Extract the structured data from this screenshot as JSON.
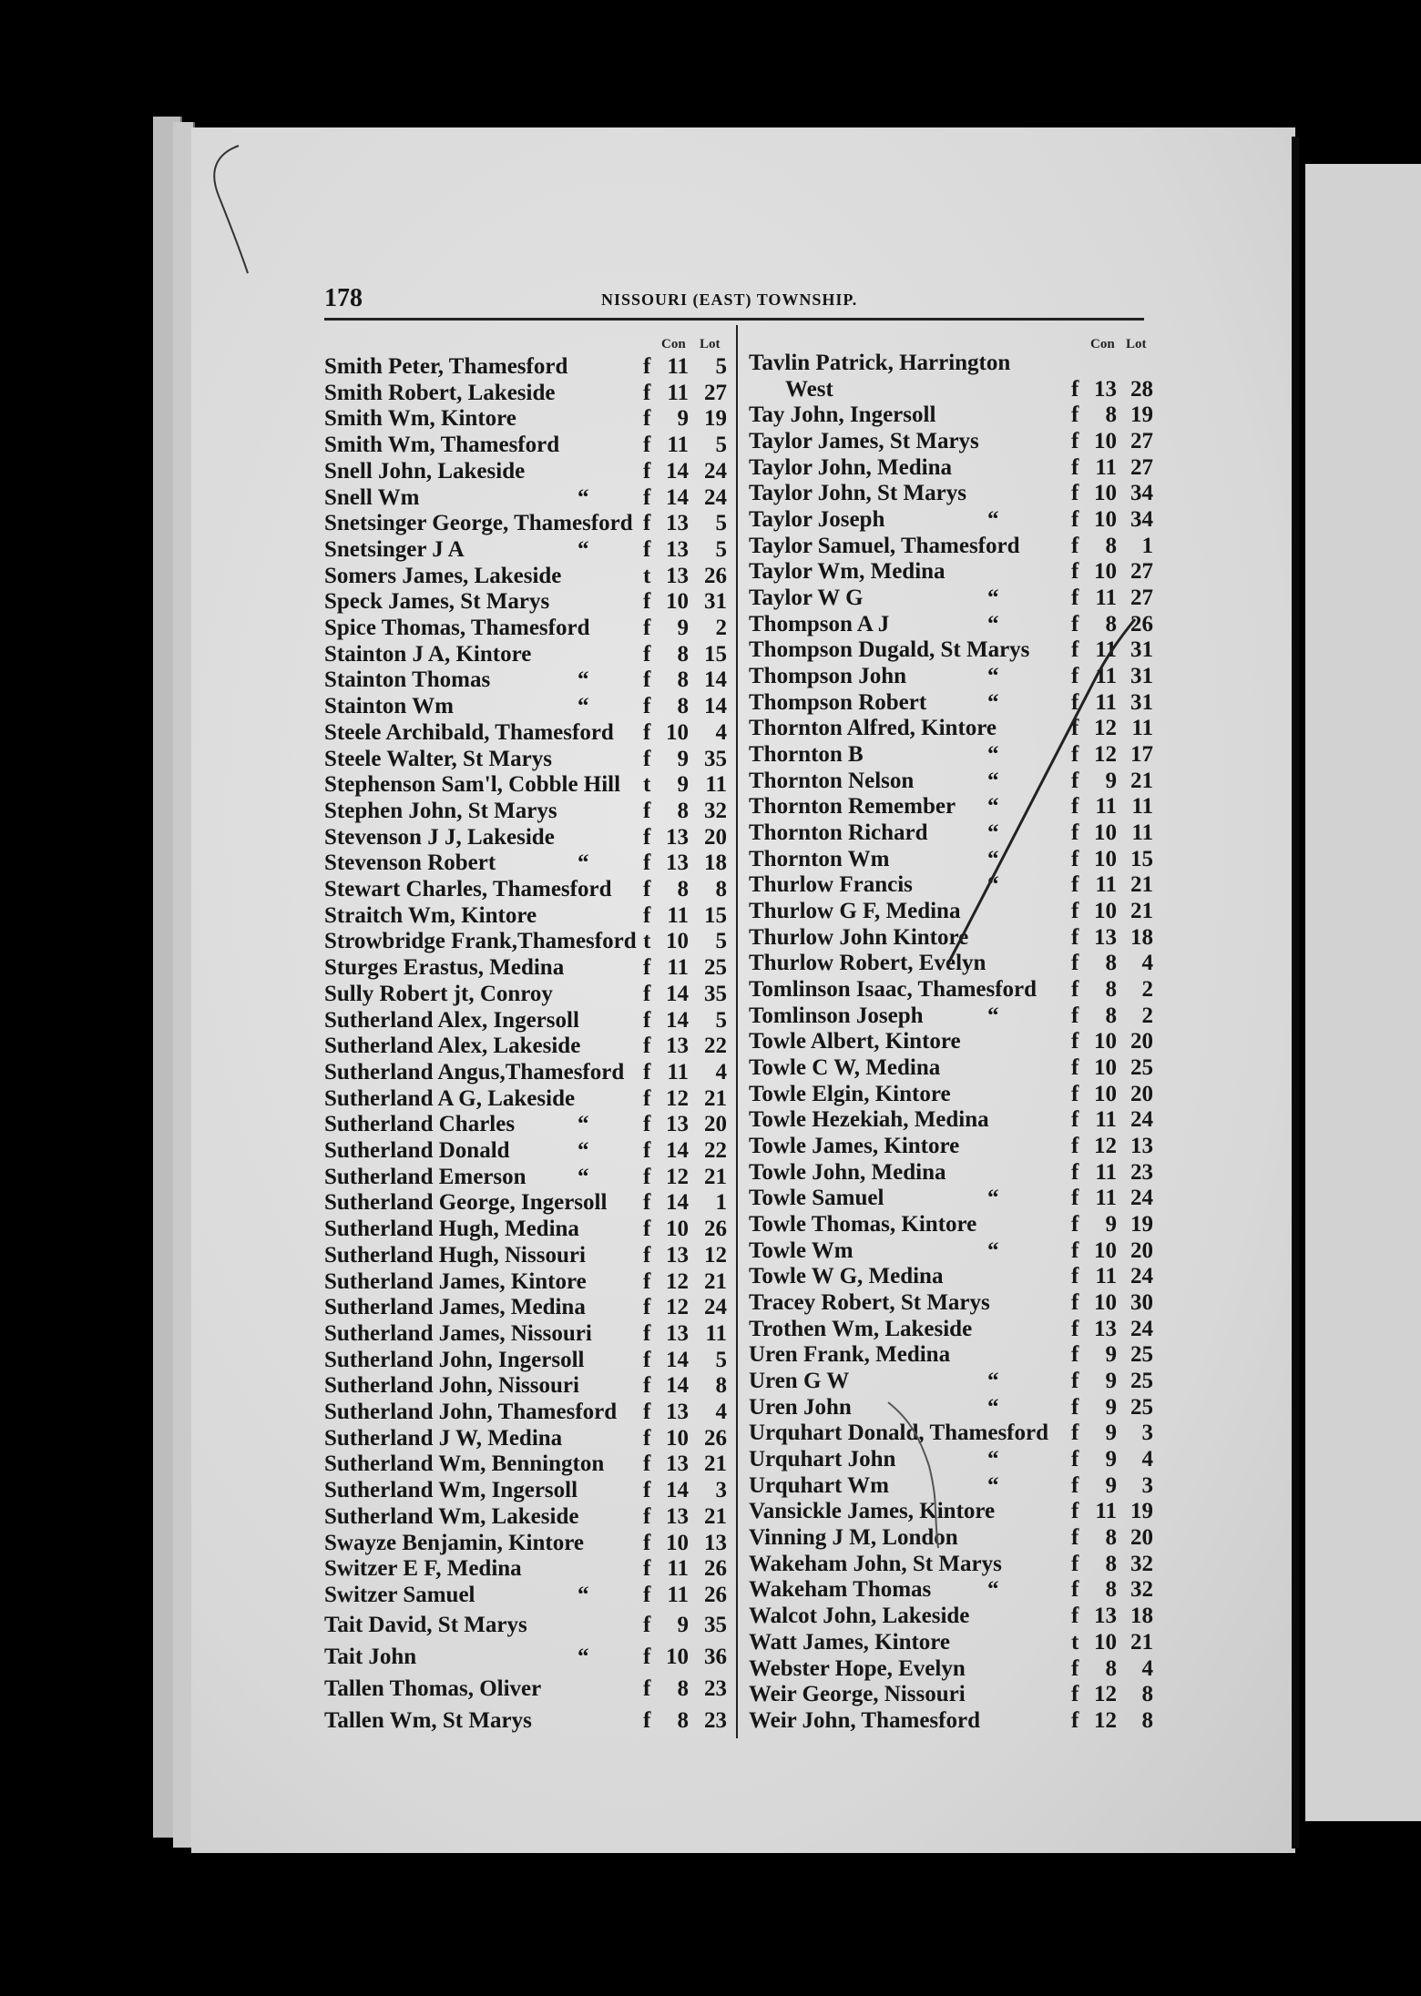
{
  "header": {
    "page_number": "178",
    "title": "NISSOURI (EAST) TOWNSHIP."
  },
  "columns_header": {
    "con": "Con",
    "lot": "Lot"
  },
  "left_entries": [
    {
      "name": "Smith Peter, Thamesford",
      "type": "f",
      "con": "11",
      "lot": "5"
    },
    {
      "name": "Smith Robert, Lakeside",
      "type": "f",
      "con": "11",
      "lot": "27"
    },
    {
      "name": "Smith Wm, Kintore",
      "type": "f",
      "con": "9",
      "lot": "19"
    },
    {
      "name": "Smith Wm, Thamesford",
      "type": "f",
      "con": "11",
      "lot": "5"
    },
    {
      "name": "Snell John, Lakeside",
      "type": "f",
      "con": "14",
      "lot": "24"
    },
    {
      "name": "Snell Wm",
      "ditto": "“",
      "type": "f",
      "con": "14",
      "lot": "24"
    },
    {
      "name": "Snetsinger George, Thamesford",
      "type": "f",
      "con": "13",
      "lot": "5"
    },
    {
      "name": "Snetsinger J A",
      "ditto": "“",
      "type": "f",
      "con": "13",
      "lot": "5"
    },
    {
      "name": "Somers James, Lakeside",
      "type": "t",
      "con": "13",
      "lot": "26"
    },
    {
      "name": "Speck James, St Marys",
      "type": "f",
      "con": "10",
      "lot": "31"
    },
    {
      "name": "Spice Thomas, Thamesford",
      "type": "f",
      "con": "9",
      "lot": "2"
    },
    {
      "name": "Stainton J A, Kintore",
      "type": "f",
      "con": "8",
      "lot": "15"
    },
    {
      "name": "Stainton Thomas",
      "ditto": "“",
      "type": "f",
      "con": "8",
      "lot": "14"
    },
    {
      "name": "Stainton Wm",
      "ditto": "“",
      "type": "f",
      "con": "8",
      "lot": "14"
    },
    {
      "name": "Steele Archibald, Thamesford",
      "type": "f",
      "con": "10",
      "lot": "4"
    },
    {
      "name": "Steele Walter, St Marys",
      "type": "f",
      "con": "9",
      "lot": "35"
    },
    {
      "name": "Stephenson Sam'l, Cobble Hill",
      "type": "t",
      "con": "9",
      "lot": "11"
    },
    {
      "name": "Stephen John, St Marys",
      "type": "f",
      "con": "8",
      "lot": "32"
    },
    {
      "name": "Stevenson J J, Lakeside",
      "type": "f",
      "con": "13",
      "lot": "20"
    },
    {
      "name": "Stevenson Robert",
      "ditto": "“",
      "type": "f",
      "con": "13",
      "lot": "18"
    },
    {
      "name": "Stewart Charles, Thamesford",
      "type": "f",
      "con": "8",
      "lot": "8"
    },
    {
      "name": "Straitch Wm, Kintore",
      "type": "f",
      "con": "11",
      "lot": "15"
    },
    {
      "name": "Strowbridge Frank,Thamesford",
      "type": "t",
      "con": "10",
      "lot": "5"
    },
    {
      "name": "Sturges Erastus, Medina",
      "type": "f",
      "con": "11",
      "lot": "25"
    },
    {
      "name": "Sully Robert jt, Conroy",
      "type": "f",
      "con": "14",
      "lot": "35"
    },
    {
      "name": "Sutherland Alex, Ingersoll",
      "type": "f",
      "con": "14",
      "lot": "5"
    },
    {
      "name": "Sutherland Alex, Lakeside",
      "type": "f",
      "con": "13",
      "lot": "22"
    },
    {
      "name": "Sutherland Angus,Thamesford",
      "type": "f",
      "con": "11",
      "lot": "4"
    },
    {
      "name": "Sutherland A G, Lakeside",
      "type": "f",
      "con": "12",
      "lot": "21"
    },
    {
      "name": "Sutherland Charles",
      "ditto": "“",
      "type": "f",
      "con": "13",
      "lot": "20"
    },
    {
      "name": "Sutherland Donald",
      "ditto": "“",
      "type": "f",
      "con": "14",
      "lot": "22"
    },
    {
      "name": "Sutherland Emerson",
      "ditto": "“",
      "type": "f",
      "con": "12",
      "lot": "21"
    },
    {
      "name": "Sutherland George, Ingersoll",
      "type": "f",
      "con": "14",
      "lot": "1"
    },
    {
      "name": "Sutherland Hugh, Medina",
      "type": "f",
      "con": "10",
      "lot": "26"
    },
    {
      "name": "Sutherland Hugh, Nissouri",
      "type": "f",
      "con": "13",
      "lot": "12"
    },
    {
      "name": "Sutherland James, Kintore",
      "type": "f",
      "con": "12",
      "lot": "21"
    },
    {
      "name": "Sutherland James, Medina",
      "type": "f",
      "con": "12",
      "lot": "24"
    },
    {
      "name": "Sutherland James, Nissouri",
      "type": "f",
      "con": "13",
      "lot": "11"
    },
    {
      "name": "Sutherland John, Ingersoll",
      "type": "f",
      "con": "14",
      "lot": "5"
    },
    {
      "name": "Sutherland John, Nissouri",
      "type": "f",
      "con": "14",
      "lot": "8"
    },
    {
      "name": "Sutherland John, Thamesford",
      "type": "f",
      "con": "13",
      "lot": "4"
    },
    {
      "name": "Sutherland J W, Medina",
      "type": "f",
      "con": "10",
      "lot": "26"
    },
    {
      "name": "Sutherland Wm, Bennington",
      "type": "f",
      "con": "13",
      "lot": "21"
    },
    {
      "name": "Sutherland Wm, Ingersoll",
      "type": "f",
      "con": "14",
      "lot": "3"
    },
    {
      "name": "Sutherland Wm, Lakeside",
      "type": "f",
      "con": "13",
      "lot": "21"
    },
    {
      "name": "Swayze Benjamin, Kintore",
      "type": "f",
      "con": "10",
      "lot": "13"
    },
    {
      "name": "Switzer E F, Medina",
      "type": "f",
      "con": "11",
      "lot": "26"
    },
    {
      "name": "Switzer Samuel",
      "ditto": "“",
      "type": "f",
      "con": "11",
      "lot": "26"
    },
    {
      "name": "Tait David, St Marys",
      "type": "f",
      "con": "9",
      "lot": "35"
    },
    {
      "name": "Tait John",
      "ditto": "“",
      "type": "f",
      "con": "10",
      "lot": "36"
    },
    {
      "name": "Tallen Thomas, Oliver",
      "type": "f",
      "con": "8",
      "lot": "23"
    },
    {
      "name": "Tallen Wm, St Marys",
      "type": "f",
      "con": "8",
      "lot": "23"
    }
  ],
  "right_entries": [
    {
      "name": "Tavlin Patrick, Harrington",
      "name_cont": "West",
      "type": "f",
      "con": "13",
      "lot": "28"
    },
    {
      "name": "Tay John, Ingersoll",
      "type": "f",
      "con": "8",
      "lot": "19"
    },
    {
      "name": "Taylor James, St Marys",
      "type": "f",
      "con": "10",
      "lot": "27"
    },
    {
      "name": "Taylor John, Medina",
      "type": "f",
      "con": "11",
      "lot": "27"
    },
    {
      "name": "Taylor John, St Marys",
      "type": "f",
      "con": "10",
      "lot": "34"
    },
    {
      "name": "Taylor Joseph",
      "ditto": "“",
      "type": "f",
      "con": "10",
      "lot": "34"
    },
    {
      "name": "Taylor Samuel, Thamesford",
      "type": "f",
      "con": "8",
      "lot": "1"
    },
    {
      "name": "Taylor Wm, Medina",
      "type": "f",
      "con": "10",
      "lot": "27"
    },
    {
      "name": "Taylor W G",
      "ditto": "“",
      "type": "f",
      "con": "11",
      "lot": "27"
    },
    {
      "name": "Thompson A J",
      "ditto": "“",
      "type": "f",
      "con": "8",
      "lot": "26"
    },
    {
      "name": "Thompson Dugald, St Marys",
      "type": "f",
      "con": "11",
      "lot": "31"
    },
    {
      "name": "Thompson John",
      "ditto": "“",
      "type": "f",
      "con": "11",
      "lot": "31"
    },
    {
      "name": "Thompson Robert",
      "ditto": "“",
      "type": "f",
      "con": "11",
      "lot": "31"
    },
    {
      "name": "Thornton Alfred, Kintore",
      "type": "f",
      "con": "12",
      "lot": "11"
    },
    {
      "name": "Thornton B",
      "ditto": "“",
      "type": "f",
      "con": "12",
      "lot": "17"
    },
    {
      "name": "Thornton Nelson",
      "ditto": "“",
      "type": "f",
      "con": "9",
      "lot": "21"
    },
    {
      "name": "Thornton Remember",
      "ditto": "“",
      "type": "f",
      "con": "11",
      "lot": "11"
    },
    {
      "name": "Thornton Richard",
      "ditto": "“",
      "type": "f",
      "con": "10",
      "lot": "11"
    },
    {
      "name": "Thornton Wm",
      "ditto": "“",
      "type": "f",
      "con": "10",
      "lot": "15"
    },
    {
      "name": "Thurlow Francis",
      "ditto": "“",
      "type": "f",
      "con": "11",
      "lot": "21"
    },
    {
      "name": "Thurlow G F, Medina",
      "type": "f",
      "con": "10",
      "lot": "21"
    },
    {
      "name": "Thurlow John Kintore",
      "type": "f",
      "con": "13",
      "lot": "18"
    },
    {
      "name": "Thurlow Robert, Evelyn",
      "type": "f",
      "con": "8",
      "lot": "4"
    },
    {
      "name": "Tomlinson Isaac, Thamesford",
      "type": "f",
      "con": "8",
      "lot": "2"
    },
    {
      "name": "Tomlinson Joseph",
      "ditto": "“",
      "type": "f",
      "con": "8",
      "lot": "2"
    },
    {
      "name": "Towle Albert, Kintore",
      "type": "f",
      "con": "10",
      "lot": "20"
    },
    {
      "name": "Towle C W, Medina",
      "type": "f",
      "con": "10",
      "lot": "25"
    },
    {
      "name": "Towle Elgin, Kintore",
      "type": "f",
      "con": "10",
      "lot": "20"
    },
    {
      "name": "Towle Hezekiah, Medina",
      "type": "f",
      "con": "11",
      "lot": "24"
    },
    {
      "name": "Towle James, Kintore",
      "type": "f",
      "con": "12",
      "lot": "13"
    },
    {
      "name": "Towle John, Medina",
      "type": "f",
      "con": "11",
      "lot": "23"
    },
    {
      "name": "Towle Samuel",
      "ditto": "“",
      "type": "f",
      "con": "11",
      "lot": "24"
    },
    {
      "name": "Towle Thomas, Kintore",
      "type": "f",
      "con": "9",
      "lot": "19"
    },
    {
      "name": "Towle Wm",
      "ditto": "“",
      "type": "f",
      "con": "10",
      "lot": "20"
    },
    {
      "name": "Towle W G, Medina",
      "type": "f",
      "con": "11",
      "lot": "24"
    },
    {
      "name": "Tracey Robert, St Marys",
      "type": "f",
      "con": "10",
      "lot": "30"
    },
    {
      "name": "Trothen Wm, Lakeside",
      "type": "f",
      "con": "13",
      "lot": "24"
    },
    {
      "name": "Uren Frank, Medina",
      "type": "f",
      "con": "9",
      "lot": "25"
    },
    {
      "name": "Uren G W",
      "ditto": "“",
      "type": "f",
      "con": "9",
      "lot": "25"
    },
    {
      "name": "Uren John",
      "ditto": "“",
      "type": "f",
      "con": "9",
      "lot": "25"
    },
    {
      "name": "Urquhart Donald, Thamesford",
      "type": "f",
      "con": "9",
      "lot": "3"
    },
    {
      "name": "Urquhart John",
      "ditto": "“",
      "type": "f",
      "con": "9",
      "lot": "4"
    },
    {
      "name": "Urquhart Wm",
      "ditto": "“",
      "type": "f",
      "con": "9",
      "lot": "3"
    },
    {
      "name": "Vansickle James, Kintore",
      "type": "f",
      "con": "11",
      "lot": "19"
    },
    {
      "name": "Vinning J M, London",
      "type": "f",
      "con": "8",
      "lot": "20"
    },
    {
      "name": "Wakeham John, St Marys",
      "type": "f",
      "con": "8",
      "lot": "32"
    },
    {
      "name": "Wakeham Thomas",
      "ditto": "“",
      "type": "f",
      "con": "8",
      "lot": "32"
    },
    {
      "name": "Walcot John, Lakeside",
      "type": "f",
      "con": "13",
      "lot": "18"
    },
    {
      "name": "Watt James, Kintore",
      "type": "t",
      "con": "10",
      "lot": "21"
    },
    {
      "name": "Webster Hope, Evelyn",
      "type": "f",
      "con": "8",
      "lot": "4"
    },
    {
      "name": "Weir George, Nissouri",
      "type": "f",
      "con": "12",
      "lot": "8"
    },
    {
      "name": "Weir John, Thamesford",
      "type": "f",
      "con": "12",
      "lot": "8"
    }
  ]
}
